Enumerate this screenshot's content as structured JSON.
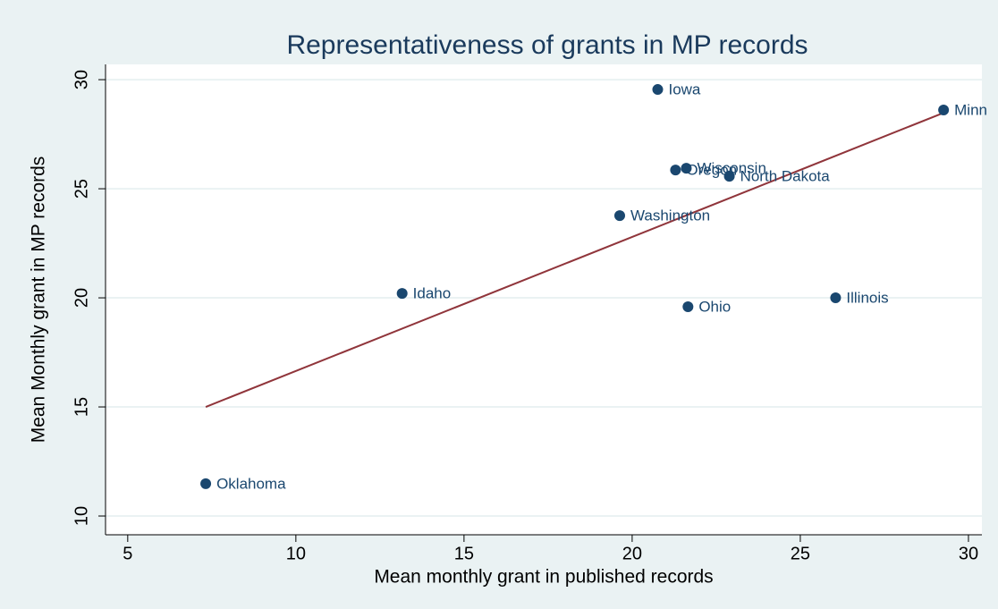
{
  "chart_data": {
    "type": "scatter",
    "title": "Representativeness of grants in MP records",
    "x_label": "Mean monthly grant in published records",
    "y_label": "Mean Monthly grant in MP records",
    "points": [
      {
        "label": "Oklahoma",
        "x": 7.32,
        "y": 11.48
      },
      {
        "label": "Idaho",
        "x": 13.16,
        "y": 20.2
      },
      {
        "label": "Washington",
        "x": 19.63,
        "y": 23.77
      },
      {
        "label": "Iowa",
        "x": 20.76,
        "y": 29.55
      },
      {
        "label": "Oregon",
        "x": 21.29,
        "y": 25.86
      },
      {
        "label": "Wisconsin",
        "x": 21.61,
        "y": 25.94
      },
      {
        "label": "North Dakota",
        "x": 22.89,
        "y": 25.57
      },
      {
        "label": "Ohio",
        "x": 21.66,
        "y": 19.59
      },
      {
        "label": "Illinois",
        "x": 26.05,
        "y": 20.0
      },
      {
        "label": "Minn",
        "x": 29.26,
        "y": 28.61
      }
    ],
    "color": "#1a476f",
    "fit_line": {
      "x": [
        7.32,
        29.26
      ],
      "y": [
        15.0,
        28.48
      ],
      "color": "#90353b"
    },
    "xlim": [
      4.34,
      30.4
    ],
    "xticks": [
      5,
      10,
      15,
      20,
      25,
      30
    ],
    "ylim": [
      9.14,
      30.7
    ],
    "yticks": [
      10,
      15,
      20,
      25,
      30
    ],
    "grid": true
  }
}
